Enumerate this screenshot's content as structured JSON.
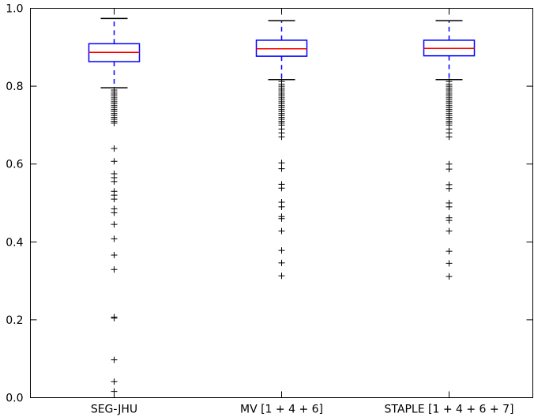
{
  "chart_data": {
    "type": "box",
    "title": "",
    "xlabel": "",
    "ylabel": "",
    "ylim": [
      0.0,
      1.0
    ],
    "yticks": [
      0.0,
      0.2,
      0.4,
      0.6,
      0.8,
      1.0
    ],
    "ytick_labels": [
      "0.0",
      "0.2",
      "0.4",
      "0.6",
      "0.8",
      "1.0"
    ],
    "grid": false,
    "colors": {
      "box": "#0000ff",
      "median": "#ff0000",
      "cap": "#000000",
      "outlier": "#000000",
      "axis": "#000000"
    },
    "categories": [
      "SEG-JHU",
      "MV [1 + 4 + 6]",
      "STAPLE [1 + 4 + 6 + 7]"
    ],
    "boxes": [
      {
        "q1": 0.863,
        "median": 0.887,
        "q3": 0.909,
        "whisker_low": 0.796,
        "whisker_high": 0.974,
        "outliers": [
          0.79,
          0.785,
          0.78,
          0.775,
          0.77,
          0.765,
          0.76,
          0.755,
          0.75,
          0.745,
          0.74,
          0.735,
          0.73,
          0.725,
          0.72,
          0.715,
          0.71,
          0.705,
          0.64,
          0.607,
          0.575,
          0.565,
          0.555,
          0.53,
          0.52,
          0.51,
          0.485,
          0.475,
          0.445,
          0.408,
          0.366,
          0.329,
          0.207,
          0.204,
          0.097,
          0.041,
          0.016
        ]
      },
      {
        "q1": 0.877,
        "median": 0.896,
        "q3": 0.918,
        "whisker_low": 0.817,
        "whisker_high": 0.968,
        "outliers": [
          0.812,
          0.805,
          0.8,
          0.795,
          0.79,
          0.785,
          0.78,
          0.775,
          0.77,
          0.765,
          0.76,
          0.755,
          0.75,
          0.745,
          0.74,
          0.735,
          0.73,
          0.725,
          0.72,
          0.715,
          0.71,
          0.705,
          0.7,
          0.69,
          0.68,
          0.67,
          0.603,
          0.588,
          0.548,
          0.538,
          0.502,
          0.49,
          0.465,
          0.46,
          0.428,
          0.378,
          0.346,
          0.313
        ]
      },
      {
        "q1": 0.878,
        "median": 0.897,
        "q3": 0.918,
        "whisker_low": 0.817,
        "whisker_high": 0.968,
        "outliers": [
          0.812,
          0.805,
          0.8,
          0.795,
          0.79,
          0.785,
          0.78,
          0.775,
          0.77,
          0.765,
          0.76,
          0.755,
          0.75,
          0.745,
          0.74,
          0.735,
          0.73,
          0.725,
          0.72,
          0.715,
          0.71,
          0.705,
          0.7,
          0.69,
          0.68,
          0.67,
          0.6,
          0.587,
          0.547,
          0.537,
          0.5,
          0.49,
          0.462,
          0.455,
          0.428,
          0.376,
          0.345,
          0.311
        ]
      }
    ]
  }
}
